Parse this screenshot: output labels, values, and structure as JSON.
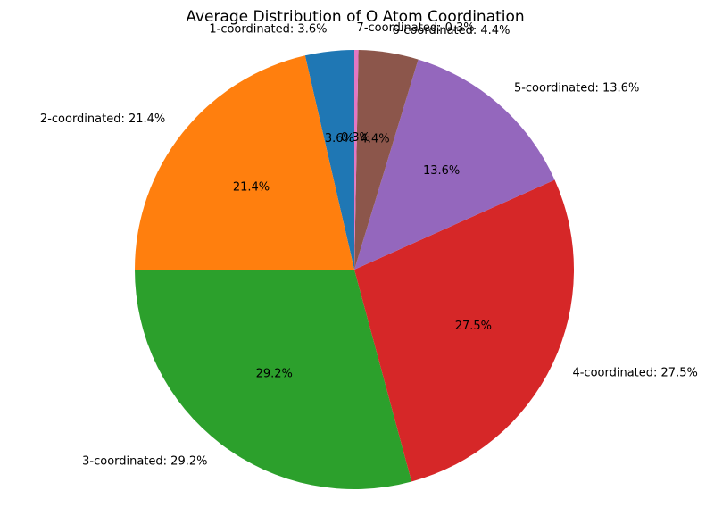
{
  "chart_data": {
    "type": "pie",
    "title": "Average Distribution of O Atom Coordination",
    "start_angle_deg": 90,
    "direction": "counterclockwise",
    "slices": [
      {
        "label": "1-coordinated",
        "value": 3.6,
        "outer_label": "1-coordinated: 3.6%",
        "pct_label": "3.6%",
        "color": "#1f77b4"
      },
      {
        "label": "2-coordinated",
        "value": 21.4,
        "outer_label": "2-coordinated: 21.4%",
        "pct_label": "21.4%",
        "color": "#ff7f0e"
      },
      {
        "label": "3-coordinated",
        "value": 29.2,
        "outer_label": "3-coordinated: 29.2%",
        "pct_label": "29.2%",
        "color": "#2ca02c"
      },
      {
        "label": "4-coordinated",
        "value": 27.5,
        "outer_label": "4-coordinated: 27.5%",
        "pct_label": "27.5%",
        "color": "#d62728"
      },
      {
        "label": "5-coordinated",
        "value": 13.6,
        "outer_label": "5-coordinated: 13.6%",
        "pct_label": "13.6%",
        "color": "#9467bd"
      },
      {
        "label": "6-coordinated",
        "value": 4.4,
        "outer_label": "6-coordinated: 4.4%",
        "pct_label": "4.4%",
        "color": "#8c564b"
      },
      {
        "label": "7-coordinated",
        "value": 0.3,
        "outer_label": "7-coordinated: 0.3%",
        "pct_label": "0.3%",
        "color": "#e377c2"
      }
    ]
  }
}
